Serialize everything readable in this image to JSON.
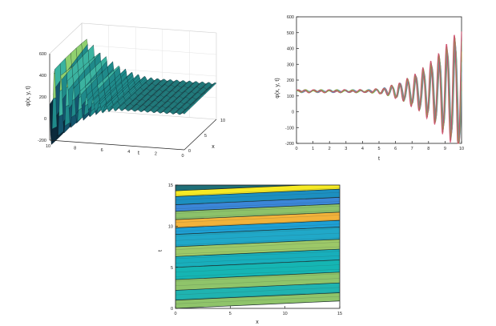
{
  "chart_data": [
    {
      "type": "surface3d",
      "zlabel": "φ(x, y, t)",
      "xlabel": "x",
      "tlabel": "t",
      "z_ticks": [
        "-200",
        "0",
        "200",
        "400",
        "600"
      ],
      "t_ticks": [
        "10",
        "8",
        "6",
        "4",
        "2",
        "0"
      ],
      "x_ticks": [
        "0",
        "5",
        "10"
      ],
      "zlim": [
        -200,
        600
      ],
      "tlim": [
        0,
        10
      ],
      "xlim": [
        0,
        10
      ],
      "colors": [
        "#0b2a3c",
        "#14556d",
        "#1f8a8a",
        "#3bb3a0",
        "#8fd06f",
        "#e9e86a"
      ]
    },
    {
      "type": "line",
      "xlabel": "t",
      "ylabel": "φ(x, y, t)",
      "xlim": [
        0,
        10
      ],
      "ylim": [
        -200,
        600
      ],
      "x_ticks": [
        "0",
        "1",
        "2",
        "3",
        "4",
        "5",
        "6",
        "7",
        "8",
        "9",
        "10"
      ],
      "y_ticks": [
        "-200",
        "-100",
        "0",
        "100",
        "200",
        "300",
        "400",
        "500",
        "600"
      ],
      "series_colors": [
        "#1b9e9e",
        "#e06b2a",
        "#8a6dbf",
        "#3aa0c8",
        "#c4a92c",
        "#5bb55a",
        "#d24a6a"
      ],
      "baseline": 130,
      "growth_start": 4,
      "amplitude_end": 380,
      "frequency": 2.1
    },
    {
      "type": "contour",
      "xlabel": "x",
      "ylabel": "t",
      "xlim": [
        0,
        15
      ],
      "ylim": [
        0,
        15
      ],
      "x_ticks": [
        "0",
        "5",
        "10",
        "15"
      ],
      "y_ticks": [
        "0",
        "5",
        "10",
        "15"
      ],
      "bands": [
        {
          "from": 0,
          "to": 1,
          "color": "#8fc46a"
        },
        {
          "from": 1,
          "to": 2.2,
          "color": "#1fb3b0"
        },
        {
          "from": 2.2,
          "to": 3.5,
          "color": "#8fc46a"
        },
        {
          "from": 3.5,
          "to": 5,
          "color": "#15b5b3"
        },
        {
          "from": 5,
          "to": 6.3,
          "color": "#18aebb"
        },
        {
          "from": 6.3,
          "to": 7.5,
          "color": "#9cc868"
        },
        {
          "from": 7.5,
          "to": 9,
          "color": "#20a8c8"
        },
        {
          "from": 9,
          "to": 9.8,
          "color": "#1e9fd4"
        },
        {
          "from": 9.8,
          "to": 10.8,
          "color": "#f2b23a"
        },
        {
          "from": 10.8,
          "to": 11.8,
          "color": "#8cc26a"
        },
        {
          "from": 11.8,
          "to": 12.6,
          "color": "#3b86d8"
        },
        {
          "from": 12.6,
          "to": 13.6,
          "color": "#1c8fc0"
        },
        {
          "from": 13.6,
          "to": 14.3,
          "color": "#f6ea24"
        },
        {
          "from": 14.3,
          "to": 15,
          "color": "#1f6f78"
        }
      ]
    }
  ]
}
